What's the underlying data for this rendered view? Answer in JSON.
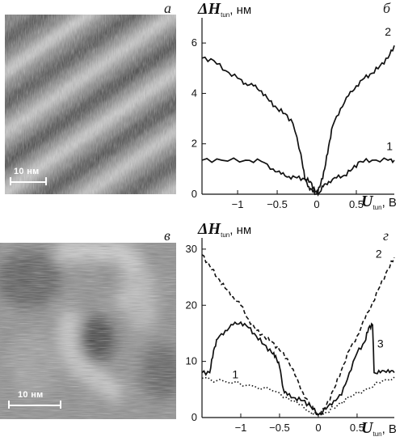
{
  "panels": {
    "a": {
      "letter": "а",
      "scalebar": "10 нм"
    },
    "b": {
      "letter": "б"
    },
    "c": {
      "letter": "в",
      "scalebar": "10 нм"
    },
    "d": {
      "letter": "г"
    }
  },
  "axis_text": {
    "y_symbol": "ΔH",
    "y_sub": "tun",
    "y_unit": ", нм",
    "x_symbol": "U",
    "x_sub": "tun",
    "x_unit": ", В"
  },
  "chart_data": [
    {
      "type": "line",
      "panel": "б",
      "xlim": [
        -1.45,
        0.98
      ],
      "ylim": [
        0,
        7
      ],
      "xticks": [
        -1,
        -0.5,
        0,
        0.5
      ],
      "yticks": [
        0,
        2,
        4,
        6
      ],
      "grid": false,
      "series": [
        {
          "name": "1",
          "style": "solid",
          "x": [
            -1.45,
            -1.2,
            -0.9,
            -0.7,
            -0.55,
            -0.45,
            -0.35,
            -0.25,
            -0.15,
            -0.08,
            -0.02,
            0.03,
            0.08,
            0.15,
            0.25,
            0.35,
            0.45,
            0.55,
            0.7,
            0.9,
            0.98
          ],
          "y": [
            1.35,
            1.35,
            1.35,
            1.3,
            1.0,
            0.8,
            0.7,
            0.65,
            0.6,
            0.5,
            0.1,
            0.05,
            0.3,
            0.5,
            0.65,
            0.75,
            1.0,
            1.3,
            1.35,
            1.35,
            1.35
          ]
        },
        {
          "name": "2",
          "style": "solid",
          "x": [
            -1.45,
            -1.3,
            -1.15,
            -1.0,
            -0.9,
            -0.8,
            -0.7,
            -0.6,
            -0.5,
            -0.4,
            -0.3,
            -0.2,
            -0.15,
            -0.1,
            -0.05,
            0.0,
            0.05,
            0.1,
            0.15,
            0.2,
            0.3,
            0.4,
            0.5,
            0.6,
            0.7,
            0.8,
            0.9,
            0.98
          ],
          "y": [
            5.4,
            5.3,
            4.9,
            4.6,
            4.4,
            4.3,
            4.1,
            3.7,
            3.4,
            3.2,
            2.8,
            1.6,
            0.6,
            0.3,
            0.1,
            0.0,
            0.4,
            1.0,
            1.9,
            2.7,
            3.4,
            3.9,
            4.3,
            4.6,
            4.8,
            5.1,
            5.4,
            5.9
          ]
        }
      ]
    },
    {
      "type": "line",
      "panel": "г",
      "xlim": [
        -1.5,
        0.98
      ],
      "ylim": [
        0,
        32
      ],
      "xticks": [
        -1,
        -0.5,
        0,
        0.5
      ],
      "yticks": [
        0,
        10,
        20,
        30
      ],
      "grid": false,
      "series": [
        {
          "name": "1",
          "style": "dotted",
          "x": [
            -1.5,
            -1.2,
            -0.9,
            -0.6,
            -0.4,
            -0.25,
            -0.1,
            0.0,
            0.1,
            0.25,
            0.4,
            0.6,
            0.8,
            0.98
          ],
          "y": [
            7.0,
            6.4,
            5.8,
            4.8,
            3.6,
            2.3,
            1.0,
            0.4,
            0.9,
            2.2,
            3.6,
            5.0,
            6.2,
            7.2
          ]
        },
        {
          "name": "2",
          "style": "dashed",
          "x": [
            -1.5,
            -1.4,
            -1.3,
            -1.2,
            -1.1,
            -1.0,
            -0.9,
            -0.8,
            -0.7,
            -0.6,
            -0.5,
            -0.4,
            -0.3,
            -0.2,
            -0.1,
            0.0,
            0.1,
            0.2,
            0.3,
            0.4,
            0.5,
            0.6,
            0.7,
            0.8,
            0.9,
            0.98
          ],
          "y": [
            29.0,
            27.0,
            25.0,
            23.0,
            21.5,
            20.0,
            17.5,
            15.5,
            14.5,
            13.5,
            12.0,
            10.5,
            7.5,
            4.5,
            2.0,
            0.5,
            2.0,
            5.0,
            8.5,
            12.0,
            14.5,
            17.5,
            20.5,
            23.5,
            26.5,
            28.5
          ]
        },
        {
          "name": "3",
          "style": "solid",
          "x": [
            -1.5,
            -1.4,
            -1.35,
            -1.3,
            -1.2,
            -1.1,
            -1.0,
            -0.9,
            -0.8,
            -0.7,
            -0.6,
            -0.55,
            -0.5,
            -0.45,
            -0.4,
            -0.3,
            -0.2,
            -0.1,
            0.0,
            0.1,
            0.2,
            0.3,
            0.4,
            0.5,
            0.6,
            0.65,
            0.7,
            0.72,
            0.8,
            0.9,
            0.98
          ],
          "y": [
            8.0,
            8.0,
            12.0,
            14.0,
            15.5,
            16.5,
            17.0,
            16.0,
            14.5,
            13.0,
            11.5,
            11.0,
            9.0,
            5.0,
            4.0,
            3.5,
            3.0,
            2.0,
            0.5,
            1.5,
            3.0,
            4.0,
            8.0,
            11.5,
            13.5,
            16.0,
            16.5,
            8.0,
            8.0,
            8.5,
            8.0
          ]
        }
      ]
    }
  ]
}
